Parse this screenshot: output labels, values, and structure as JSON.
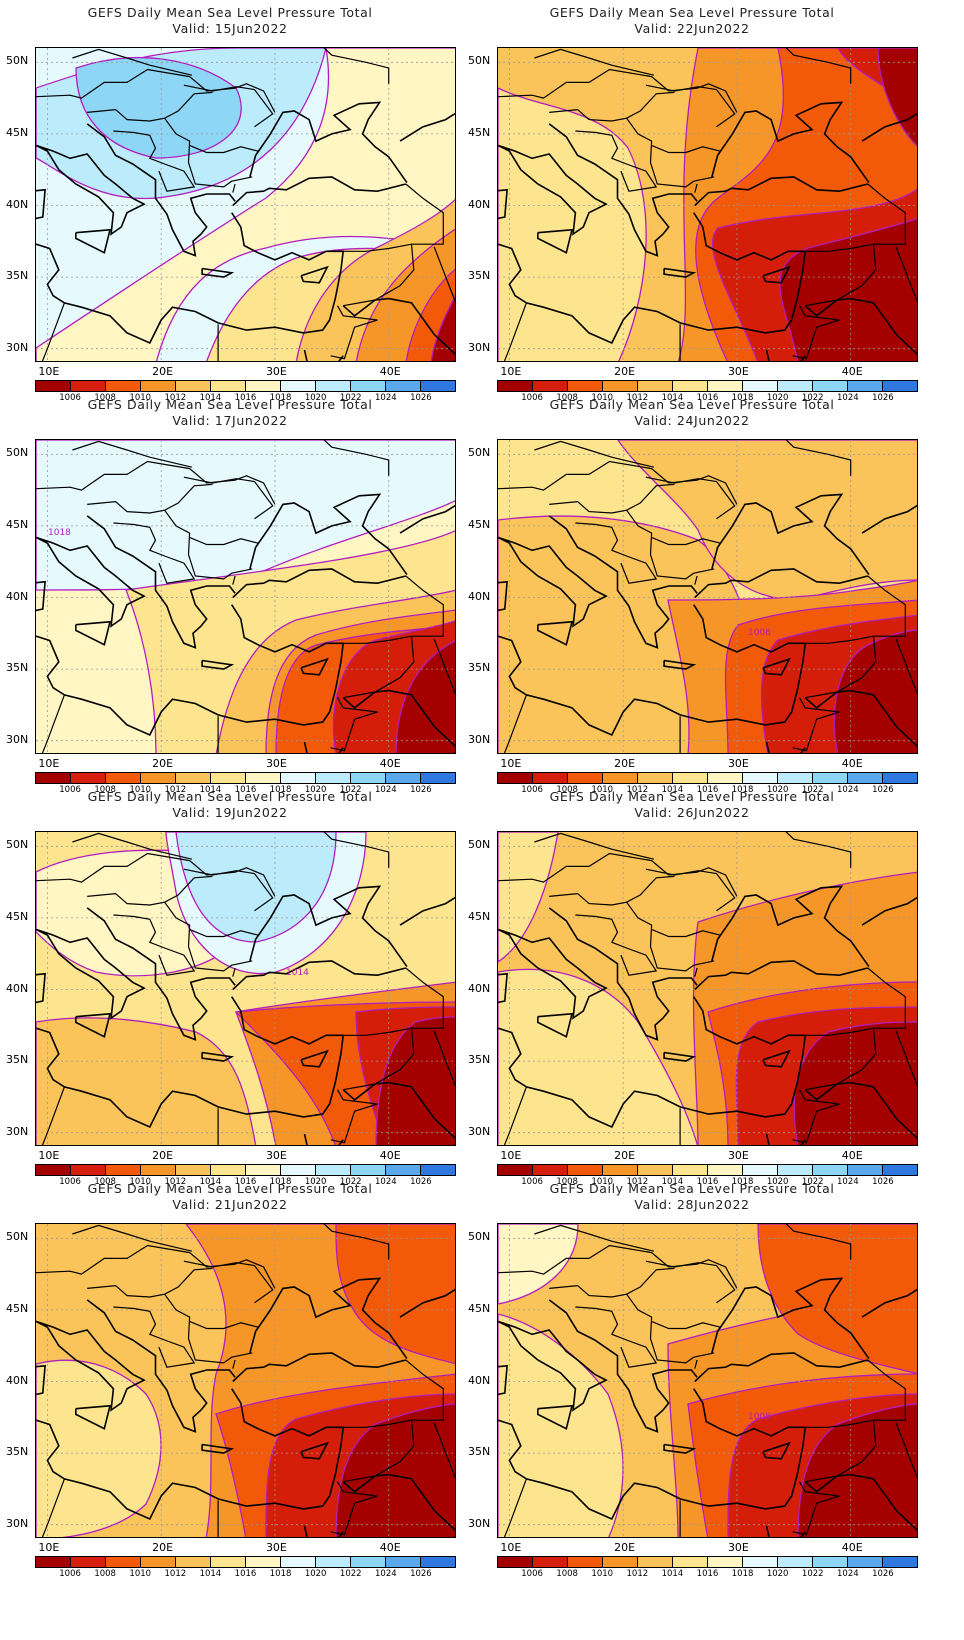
{
  "colorbar": {
    "labels": [
      "1006",
      "1008",
      "1010",
      "1012",
      "1014",
      "1016",
      "1018",
      "1020",
      "1022",
      "1024",
      "1026"
    ],
    "colors": [
      "#a50000",
      "#d41e0a",
      "#f25a0a",
      "#f79628",
      "#fbc45a",
      "#fde48e",
      "#fff6c4",
      "#e6fafe",
      "#bcecfb",
      "#8ed6f6",
      "#5aa9ee",
      "#2f78e0"
    ]
  },
  "axes": {
    "lat_labels": [
      "50N",
      "45N",
      "40N",
      "35N",
      "30N"
    ],
    "lon_labels": [
      "10E",
      "20E",
      "30E",
      "40E"
    ]
  },
  "panels": [
    {
      "title": "GEFS Daily Mean Sea Level Pressure Total",
      "valid": "Valid: 15Jun2022",
      "contour_labels": []
    },
    {
      "title": "GEFS Daily Mean Sea Level Pressure Total",
      "valid": "Valid: 22Jun2022",
      "contour_labels": []
    },
    {
      "title": "GEFS Daily Mean Sea Level Pressure Total",
      "valid": "Valid: 17Jun2022",
      "contour_labels": [
        "1018"
      ]
    },
    {
      "title": "GEFS Daily Mean Sea Level Pressure Total",
      "valid": "Valid: 24Jun2022",
      "contour_labels": [
        "1008"
      ]
    },
    {
      "title": "GEFS Daily Mean Sea Level Pressure Total",
      "valid": "Valid: 19Jun2022",
      "contour_labels": [
        "1014"
      ]
    },
    {
      "title": "GEFS Daily Mean Sea Level Pressure Total",
      "valid": "Valid: 26Jun2022",
      "contour_labels": []
    },
    {
      "title": "GEFS Daily Mean Sea Level Pressure Total",
      "valid": "Valid: 21Jun2022",
      "contour_labels": []
    },
    {
      "title": "GEFS Daily Mean Sea Level Pressure Total",
      "valid": "Valid: 28Jun2022",
      "contour_labels": [
        "1008"
      ]
    }
  ]
}
